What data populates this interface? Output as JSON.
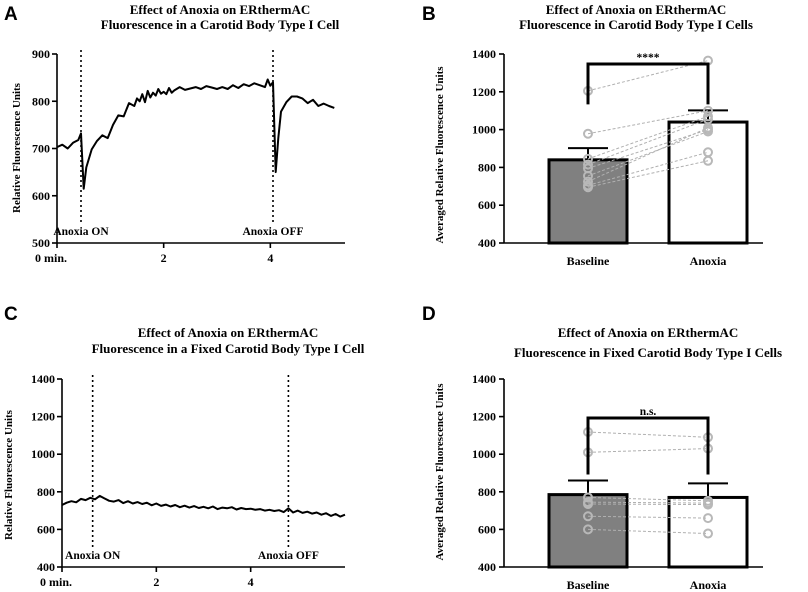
{
  "chart_data": [
    {
      "id": "A",
      "type": "line",
      "panel_letter": "A",
      "title": [
        "Effect of Anoxia on ERthermAC",
        "Fluorescence in a Carotid Body Type I Cell"
      ],
      "xlabel": "",
      "ylabel": "Relative Fluorescence Units",
      "xlim": [
        0,
        5.4
      ],
      "ylim": [
        500,
        900
      ],
      "xticks": [
        0,
        2,
        4
      ],
      "xtick_labels": [
        "0 min.",
        "2",
        "4"
      ],
      "yticks": [
        500,
        600,
        700,
        800,
        900
      ],
      "markers": [
        {
          "x": 0.45,
          "label": "Anoxia ON"
        },
        {
          "x": 4.05,
          "label": "Anoxia OFF"
        }
      ],
      "x": [
        0,
        0.1,
        0.2,
        0.3,
        0.4,
        0.45,
        0.5,
        0.55,
        0.65,
        0.75,
        0.85,
        0.95,
        1.05,
        1.15,
        1.25,
        1.35,
        1.45,
        1.5,
        1.55,
        1.6,
        1.65,
        1.7,
        1.75,
        1.8,
        1.85,
        1.9,
        1.95,
        2.0,
        2.05,
        2.1,
        2.15,
        2.2,
        2.3,
        2.4,
        2.5,
        2.6,
        2.7,
        2.8,
        2.9,
        3.0,
        3.1,
        3.2,
        3.3,
        3.4,
        3.5,
        3.6,
        3.7,
        3.8,
        3.9,
        3.95,
        4.0,
        4.05,
        4.1,
        4.15,
        4.2,
        4.3,
        4.4,
        4.5,
        4.6,
        4.7,
        4.8,
        4.9,
        5.0,
        5.1,
        5.2
      ],
      "values": [
        703,
        708,
        700,
        712,
        718,
        732,
        615,
        660,
        698,
        716,
        728,
        722,
        750,
        770,
        768,
        796,
        790,
        806,
        800,
        815,
        798,
        822,
        808,
        818,
        812,
        826,
        816,
        820,
        815,
        828,
        818,
        823,
        830,
        824,
        827,
        830,
        826,
        832,
        829,
        826,
        830,
        826,
        834,
        828,
        836,
        832,
        838,
        834,
        830,
        846,
        833,
        840,
        650,
        722,
        778,
        798,
        810,
        810,
        806,
        796,
        803,
        790,
        795,
        790,
        786
      ]
    },
    {
      "id": "B",
      "type": "bar",
      "panel_letter": "B",
      "title": [
        "Effect of Anoxia on ERthermAC",
        "Fluorescence in Carotid Body Type I Cells"
      ],
      "xlabel": "",
      "ylabel": "Averaged Relative Fluorescence Units",
      "categories": [
        "Baseline",
        "Anoxia"
      ],
      "values": [
        840,
        1040
      ],
      "error": [
        62,
        62
      ],
      "bar_colors": [
        "#808080",
        "#ffffff"
      ],
      "ylim": [
        400,
        1400
      ],
      "yticks": [
        400,
        600,
        800,
        1000,
        1200,
        1400
      ],
      "significance": "****",
      "paired_points": [
        [
          1205,
          1365
        ],
        [
          978,
          1100
        ],
        [
          845,
          1070
        ],
        [
          815,
          1055
        ],
        [
          795,
          1000
        ],
        [
          755,
          990
        ],
        [
          725,
          1010
        ],
        [
          705,
          880
        ],
        [
          695,
          835
        ]
      ]
    },
    {
      "id": "C",
      "type": "line",
      "panel_letter": "C",
      "title": [
        "Effect of Anoxia on ERthermAC",
        "Fluorescence in a Fixed Carotid Body Type I Cell"
      ],
      "xlabel": "",
      "ylabel": "Relative Fluorescence Units",
      "xlim": [
        0,
        6
      ],
      "ylim": [
        400,
        1400
      ],
      "xticks": [
        0,
        2,
        4
      ],
      "xtick_labels": [
        "0 min.",
        "2",
        "4"
      ],
      "yticks": [
        400,
        600,
        800,
        1000,
        1200,
        1400
      ],
      "markers": [
        {
          "x": 0.65,
          "label": "Anoxia ON"
        },
        {
          "x": 4.8,
          "label": "Anoxia OFF"
        }
      ],
      "x": [
        0,
        0.1,
        0.2,
        0.3,
        0.4,
        0.5,
        0.6,
        0.7,
        0.8,
        0.9,
        1.0,
        1.1,
        1.2,
        1.3,
        1.4,
        1.5,
        1.6,
        1.7,
        1.8,
        1.9,
        2.0,
        2.1,
        2.2,
        2.3,
        2.4,
        2.5,
        2.6,
        2.7,
        2.8,
        2.9,
        3.0,
        3.1,
        3.2,
        3.3,
        3.4,
        3.5,
        3.6,
        3.7,
        3.8,
        3.9,
        4.0,
        4.1,
        4.2,
        4.3,
        4.4,
        4.5,
        4.6,
        4.7,
        4.8,
        4.9,
        5.0,
        5.1,
        5.2,
        5.3,
        5.4,
        5.5,
        5.6,
        5.7,
        5.8,
        5.9,
        6.0
      ],
      "values": [
        730,
        742,
        750,
        744,
        762,
        756,
        768,
        760,
        778,
        765,
        752,
        748,
        756,
        740,
        750,
        738,
        745,
        735,
        742,
        728,
        738,
        725,
        732,
        722,
        730,
        718,
        726,
        716,
        724,
        714,
        720,
        712,
        722,
        708,
        716,
        712,
        718,
        706,
        714,
        708,
        710,
        704,
        708,
        700,
        704,
        698,
        702,
        692,
        712,
        690,
        700,
        688,
        694,
        684,
        690,
        678,
        686,
        672,
        682,
        668,
        678
      ]
    },
    {
      "id": "D",
      "type": "bar",
      "panel_letter": "D",
      "title": [
        "Effect of Anoxia on ERthermAC",
        "Fluorescence in Fixed Carotid Body Type I Cells"
      ],
      "xlabel": "",
      "ylabel": "Averaged Relative Fluorescence Units",
      "categories": [
        "Baseline",
        "Anoxia"
      ],
      "values": [
        785,
        770
      ],
      "error": [
        75,
        75
      ],
      "bar_colors": [
        "#808080",
        "#ffffff"
      ],
      "ylim": [
        400,
        1400
      ],
      "yticks": [
        400,
        600,
        800,
        1000,
        1200,
        1400
      ],
      "significance": "n.s.",
      "paired_points": [
        [
          1118,
          1090
        ],
        [
          1010,
          1030
        ],
        [
          770,
          752
        ],
        [
          745,
          740
        ],
        [
          735,
          732
        ],
        [
          670,
          660
        ],
        [
          600,
          578
        ]
      ]
    }
  ]
}
